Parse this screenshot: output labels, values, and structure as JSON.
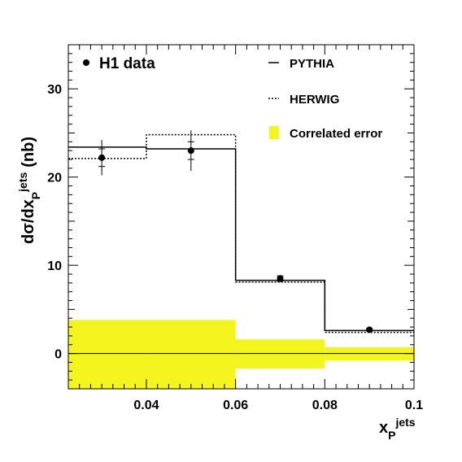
{
  "chart_data": {
    "type": "histogram",
    "xlabel_main": "x",
    "xlabel_sub": "P",
    "xlabel_sup": "jets",
    "ylabel_main": "dσ/dx",
    "ylabel_sub": "P",
    "ylabel_sup": "jets",
    "ylabel_unit": "(nb)",
    "xlim": [
      0.0225,
      0.1
    ],
    "ylim": [
      -4,
      35
    ],
    "x_ticks": [
      "0.04",
      "0.06",
      "0.08",
      "0.1"
    ],
    "x_tick_values": [
      0.04,
      0.06,
      0.08,
      0.1
    ],
    "y_ticks": [
      "0",
      "10",
      "20",
      "30"
    ],
    "y_tick_values": [
      0,
      10,
      20,
      30
    ],
    "bin_edges": [
      0.0225,
      0.04,
      0.06,
      0.08,
      0.1
    ],
    "series": [
      {
        "name": "H1 data",
        "style": "points",
        "x": [
          0.03,
          0.05,
          0.07,
          0.09
        ],
        "y": [
          22.2,
          23.0,
          8.5,
          2.7
        ],
        "err_stat": [
          1.0,
          1.0,
          0.3,
          0.15
        ],
        "err_tot": [
          2.0,
          2.3,
          0.4,
          0.25
        ]
      },
      {
        "name": "PYTHIA",
        "style": "solid-histogram",
        "values": [
          23.4,
          23.2,
          8.3,
          2.6
        ]
      },
      {
        "name": "HERWIG",
        "style": "dotted-histogram",
        "values": [
          22.1,
          24.8,
          8.1,
          2.4
        ]
      },
      {
        "name": "Correlated error",
        "style": "band",
        "color": "#f4f41e",
        "up": [
          3.8,
          3.8,
          1.6,
          0.7
        ],
        "down": [
          -4.0,
          -4.0,
          -1.7,
          -0.8
        ]
      }
    ],
    "legend": {
      "position": "top",
      "data_label": "H1 data",
      "pythia_label": "PYTHIA",
      "herwig_label": "HERWIG",
      "band_label": "Correlated error"
    }
  }
}
